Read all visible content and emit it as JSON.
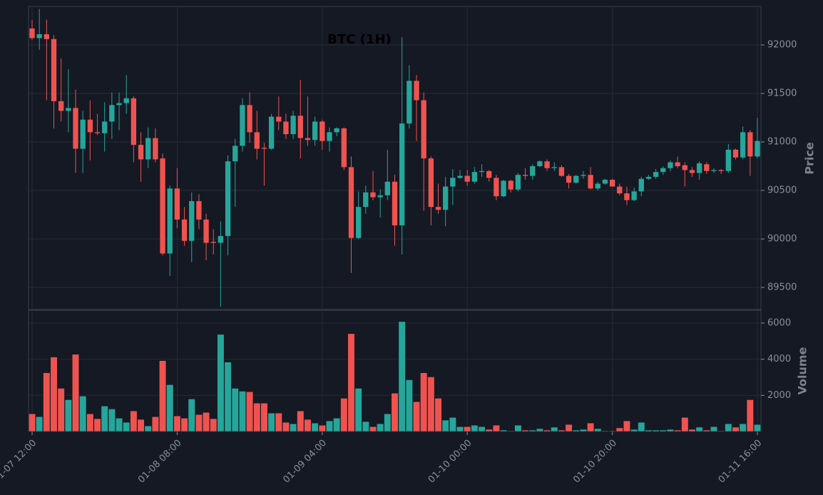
{
  "chart_data": {
    "type": "candlestick",
    "title": "BTC (1H)",
    "ylabel": "Price",
    "volume_label": "Volume",
    "up_color": "#26a69a",
    "down_color": "#ef5350",
    "grid": true,
    "ylim": [
      89272,
      92397
    ],
    "yticks": [
      89500,
      90000,
      90500,
      91000,
      91500,
      92000
    ],
    "volume_ylim": [
      0,
      6706
    ],
    "volume_yticks": [
      2000,
      4000,
      6000
    ],
    "categories": [
      "01-07 12:00",
      null,
      null,
      null,
      null,
      null,
      null,
      null,
      null,
      null,
      null,
      null,
      null,
      null,
      null,
      null,
      null,
      null,
      null,
      null,
      "01-08 08:00",
      null,
      null,
      null,
      null,
      null,
      null,
      null,
      null,
      null,
      null,
      null,
      null,
      null,
      null,
      null,
      null,
      null,
      null,
      null,
      "01-09 04:00",
      null,
      null,
      null,
      null,
      null,
      null,
      null,
      null,
      null,
      null,
      null,
      null,
      null,
      null,
      null,
      null,
      null,
      null,
      null,
      "01-10 00:00",
      null,
      null,
      null,
      null,
      null,
      null,
      null,
      null,
      null,
      null,
      null,
      null,
      null,
      null,
      null,
      null,
      null,
      null,
      null,
      "01-10 20:00",
      null,
      null,
      null,
      null,
      null,
      null,
      null,
      null,
      null,
      null,
      null,
      null,
      null,
      null,
      null,
      null,
      null,
      null,
      null,
      "01-11 16:00"
    ],
    "open": [
      92170,
      92070,
      92110,
      92060,
      91420,
      91320,
      91350,
      90930,
      91230,
      91100,
      91090,
      91210,
      91380,
      91400,
      91450,
      90970,
      90820,
      91040,
      90830,
      89850,
      90520,
      90200,
      89980,
      90390,
      90200,
      89970,
      89960,
      90030,
      90800,
      90960,
      91380,
      91100,
      90940,
      90930,
      91260,
      91210,
      91080,
      91270,
      91040,
      91020,
      91210,
      91010,
      91100,
      91140,
      90740,
      90010,
      90330,
      90480,
      90430,
      90450,
      90590,
      90140,
      91190,
      91630,
      91430,
      90830,
      90330,
      90300,
      90540,
      90630,
      90650,
      90590,
      90690,
      90700,
      90630,
      90440,
      90600,
      90510,
      90660,
      90650,
      90750,
      90800,
      90730,
      90740,
      90650,
      90580,
      90650,
      90660,
      90520,
      90570,
      90610,
      90540,
      90470,
      90400,
      90490,
      90620,
      90640,
      90690,
      90730,
      90790,
      90760,
      90710,
      90680,
      90770,
      90700,
      90710,
      90700,
      90920,
      90840,
      91100,
      90850
    ],
    "high": [
      92260,
      92370,
      92260,
      92100,
      91860,
      91750,
      91540,
      91320,
      91430,
      91290,
      91410,
      91510,
      91510,
      91690,
      91470,
      91100,
      91150,
      91140,
      90880,
      90550,
      90730,
      90330,
      90480,
      90460,
      90260,
      90100,
      90180,
      90860,
      91030,
      91450,
      91510,
      91320,
      90990,
      91290,
      91470,
      91290,
      91320,
      91640,
      91470,
      91260,
      91230,
      91150,
      91150,
      91150,
      90850,
      90490,
      90550,
      90700,
      90510,
      90920,
      90660,
      92080,
      91790,
      91690,
      91510,
      90850,
      90570,
      90640,
      90720,
      90710,
      90710,
      90740,
      90770,
      90710,
      90660,
      90610,
      90610,
      90680,
      90730,
      90770,
      90810,
      90820,
      90790,
      90760,
      90670,
      90660,
      90700,
      90740,
      90590,
      90620,
      90620,
      90570,
      90540,
      90530,
      90640,
      90660,
      90720,
      90750,
      90810,
      90850,
      90790,
      90740,
      90800,
      90790,
      90730,
      90720,
      90980,
      90930,
      91160,
      91120,
      91250
    ],
    "low": [
      92050,
      91950,
      91430,
      91140,
      91210,
      91100,
      90680,
      90680,
      90810,
      91070,
      90900,
      91030,
      91120,
      91290,
      90790,
      90590,
      90730,
      90790,
      89830,
      89620,
      90110,
      89930,
      89760,
      90100,
      89780,
      89840,
      89300,
      89830,
      90330,
      90900,
      90990,
      90820,
      90550,
      90920,
      91120,
      91030,
      91030,
      90830,
      90960,
      90960,
      90920,
      90900,
      91060,
      90710,
      89650,
      90000,
      90260,
      90400,
      90220,
      90400,
      89930,
      89840,
      91140,
      91010,
      90290,
      90140,
      90260,
      90130,
      90350,
      90620,
      90550,
      90570,
      90640,
      90590,
      90400,
      90430,
      90480,
      90490,
      90610,
      90610,
      90740,
      90700,
      90700,
      90640,
      90520,
      90570,
      90620,
      90510,
      90500,
      90560,
      90540,
      90450,
      90350,
      90390,
      90440,
      90610,
      90620,
      90660,
      90700,
      90730,
      90540,
      90640,
      90610,
      90670,
      90680,
      90670,
      90680,
      90820,
      90820,
      90650,
      90830
    ],
    "close": [
      92070,
      92110,
      92060,
      91420,
      91320,
      91350,
      90930,
      91230,
      91100,
      91090,
      91210,
      91380,
      91400,
      91450,
      90970,
      90820,
      91040,
      90820,
      89850,
      90520,
      90200,
      89980,
      90390,
      90200,
      89960,
      89960,
      90030,
      90800,
      90960,
      91380,
      91100,
      90930,
      90930,
      91260,
      91210,
      91080,
      91270,
      91040,
      91020,
      91210,
      91010,
      91100,
      91140,
      90740,
      90010,
      90330,
      90480,
      90430,
      90450,
      90590,
      90140,
      91190,
      91630,
      91430,
      90830,
      90330,
      90300,
      90540,
      90630,
      90650,
      90590,
      90690,
      90700,
      90630,
      90440,
      90600,
      90510,
      90660,
      90650,
      90750,
      90800,
      90730,
      90740,
      90650,
      90580,
      90650,
      90660,
      90520,
      90570,
      90610,
      90540,
      90470,
      90400,
      90490,
      90620,
      90640,
      90690,
      90730,
      90790,
      90750,
      90710,
      90680,
      90780,
      90700,
      90710,
      90700,
      90920,
      90840,
      91100,
      90850,
      91010
    ],
    "volume": [
      980,
      820,
      3250,
      4120,
      2390,
      1760,
      4270,
      1960,
      980,
      710,
      1410,
      1250,
      740,
      510,
      1140,
      670,
      310,
      820,
      3920,
      2590,
      860,
      740,
      1800,
      940,
      1060,
      710,
      5370,
      3840,
      2390,
      2230,
      2200,
      1570,
      1570,
      1020,
      1020,
      510,
      430,
      1140,
      670,
      470,
      350,
      590,
      740,
      1840,
      5410,
      2390,
      550,
      270,
      430,
      980,
      2120,
      6080,
      2860,
      1650,
      3250,
      3020,
      1840,
      630,
      780,
      270,
      270,
      350,
      270,
      120,
      350,
      80,
      40,
      350,
      80,
      80,
      160,
      80,
      240,
      80,
      390,
      80,
      120,
      470,
      160,
      40,
      40,
      200,
      590,
      120,
      510,
      80,
      80,
      80,
      120,
      80,
      780,
      120,
      240,
      80,
      270,
      40,
      430,
      240,
      430,
      1760,
      390
    ]
  }
}
